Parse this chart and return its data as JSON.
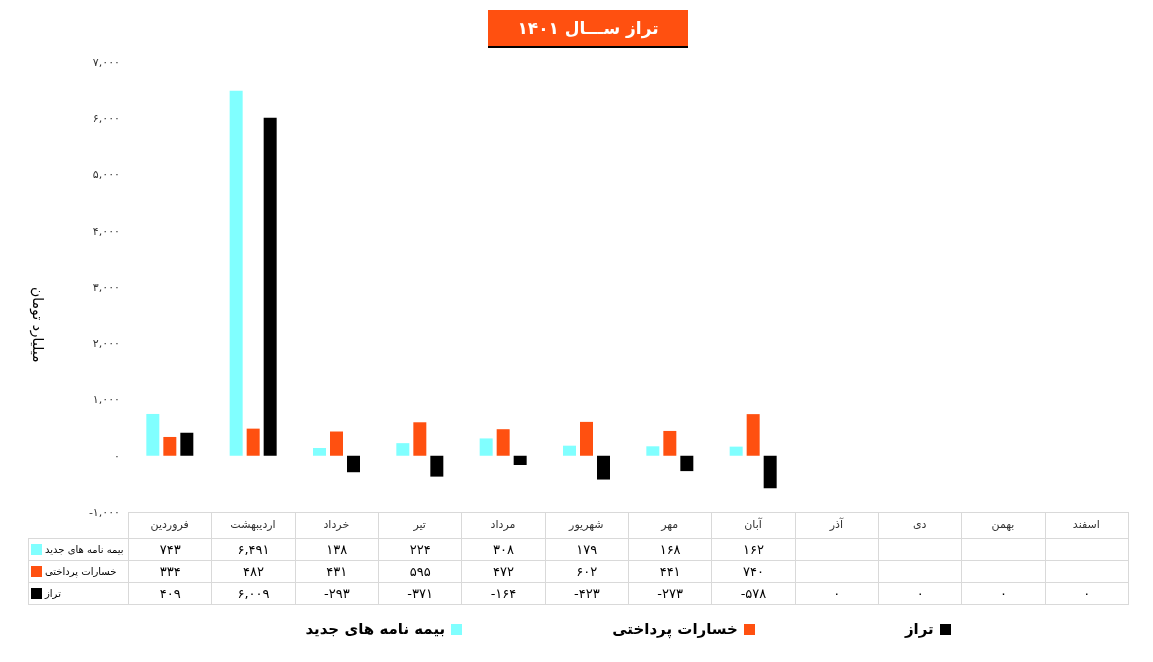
{
  "chart_data": {
    "type": "bar",
    "title": "تراز ســـال ۱۴۰۱",
    "ylabel": "میلیارد تومان",
    "categories": [
      "فروردین",
      "اردیبهشت",
      "خرداد",
      "تیر",
      "مرداد",
      "شهریور",
      "مهر",
      "آبان",
      "آذر",
      "دی",
      "بهمن",
      "اسفند"
    ],
    "series": [
      {
        "name": "بیمه نامه های جدید",
        "color": "#80ffff",
        "values": [
          743,
          6491,
          138,
          224,
          308,
          179,
          168,
          162,
          null,
          null,
          null,
          null
        ],
        "value_labels": [
          "۷۴۳",
          "۶,۴۹۱",
          "۱۳۸",
          "۲۲۴",
          "۳۰۸",
          "۱۷۹",
          "۱۶۸",
          "۱۶۲",
          null,
          null,
          null,
          null
        ]
      },
      {
        "name": "خسارات پرداختی",
        "color": "#ff5010",
        "values": [
          334,
          482,
          431,
          595,
          472,
          602,
          441,
          740,
          null,
          null,
          null,
          null
        ],
        "value_labels": [
          "۳۳۴",
          "۴۸۲",
          "۴۳۱",
          "۵۹۵",
          "۴۷۲",
          "۶۰۲",
          "۴۴۱",
          "۷۴۰",
          null,
          null,
          null,
          null
        ]
      },
      {
        "name": "تراز",
        "color": "#000000",
        "values": [
          409,
          6009,
          -293,
          -371,
          -164,
          -423,
          -273,
          -578,
          0,
          0,
          0,
          0
        ],
        "value_labels": [
          "۴۰۹",
          "۶,۰۰۹",
          "-۲۹۳",
          "-۳۷۱",
          "-۱۶۴",
          "-۴۲۳",
          "-۲۷۳",
          "-۵۷۸",
          "۰",
          "۰",
          "۰",
          "۰"
        ]
      }
    ],
    "ylim": [
      -1000,
      7000
    ],
    "yticks": [
      {
        "value": -1000,
        "label": "-۱,۰۰۰"
      },
      {
        "value": 0,
        "label": "۰"
      },
      {
        "value": 1000,
        "label": "۱,۰۰۰"
      },
      {
        "value": 2000,
        "label": "۲,۰۰۰"
      },
      {
        "value": 3000,
        "label": "۳,۰۰۰"
      },
      {
        "value": 4000,
        "label": "۴,۰۰۰"
      },
      {
        "value": 5000,
        "label": "۵,۰۰۰"
      },
      {
        "value": 6000,
        "label": "۶,۰۰۰"
      },
      {
        "value": 7000,
        "label": "۷,۰۰۰"
      }
    ],
    "grid": false,
    "legend": "bottom"
  }
}
